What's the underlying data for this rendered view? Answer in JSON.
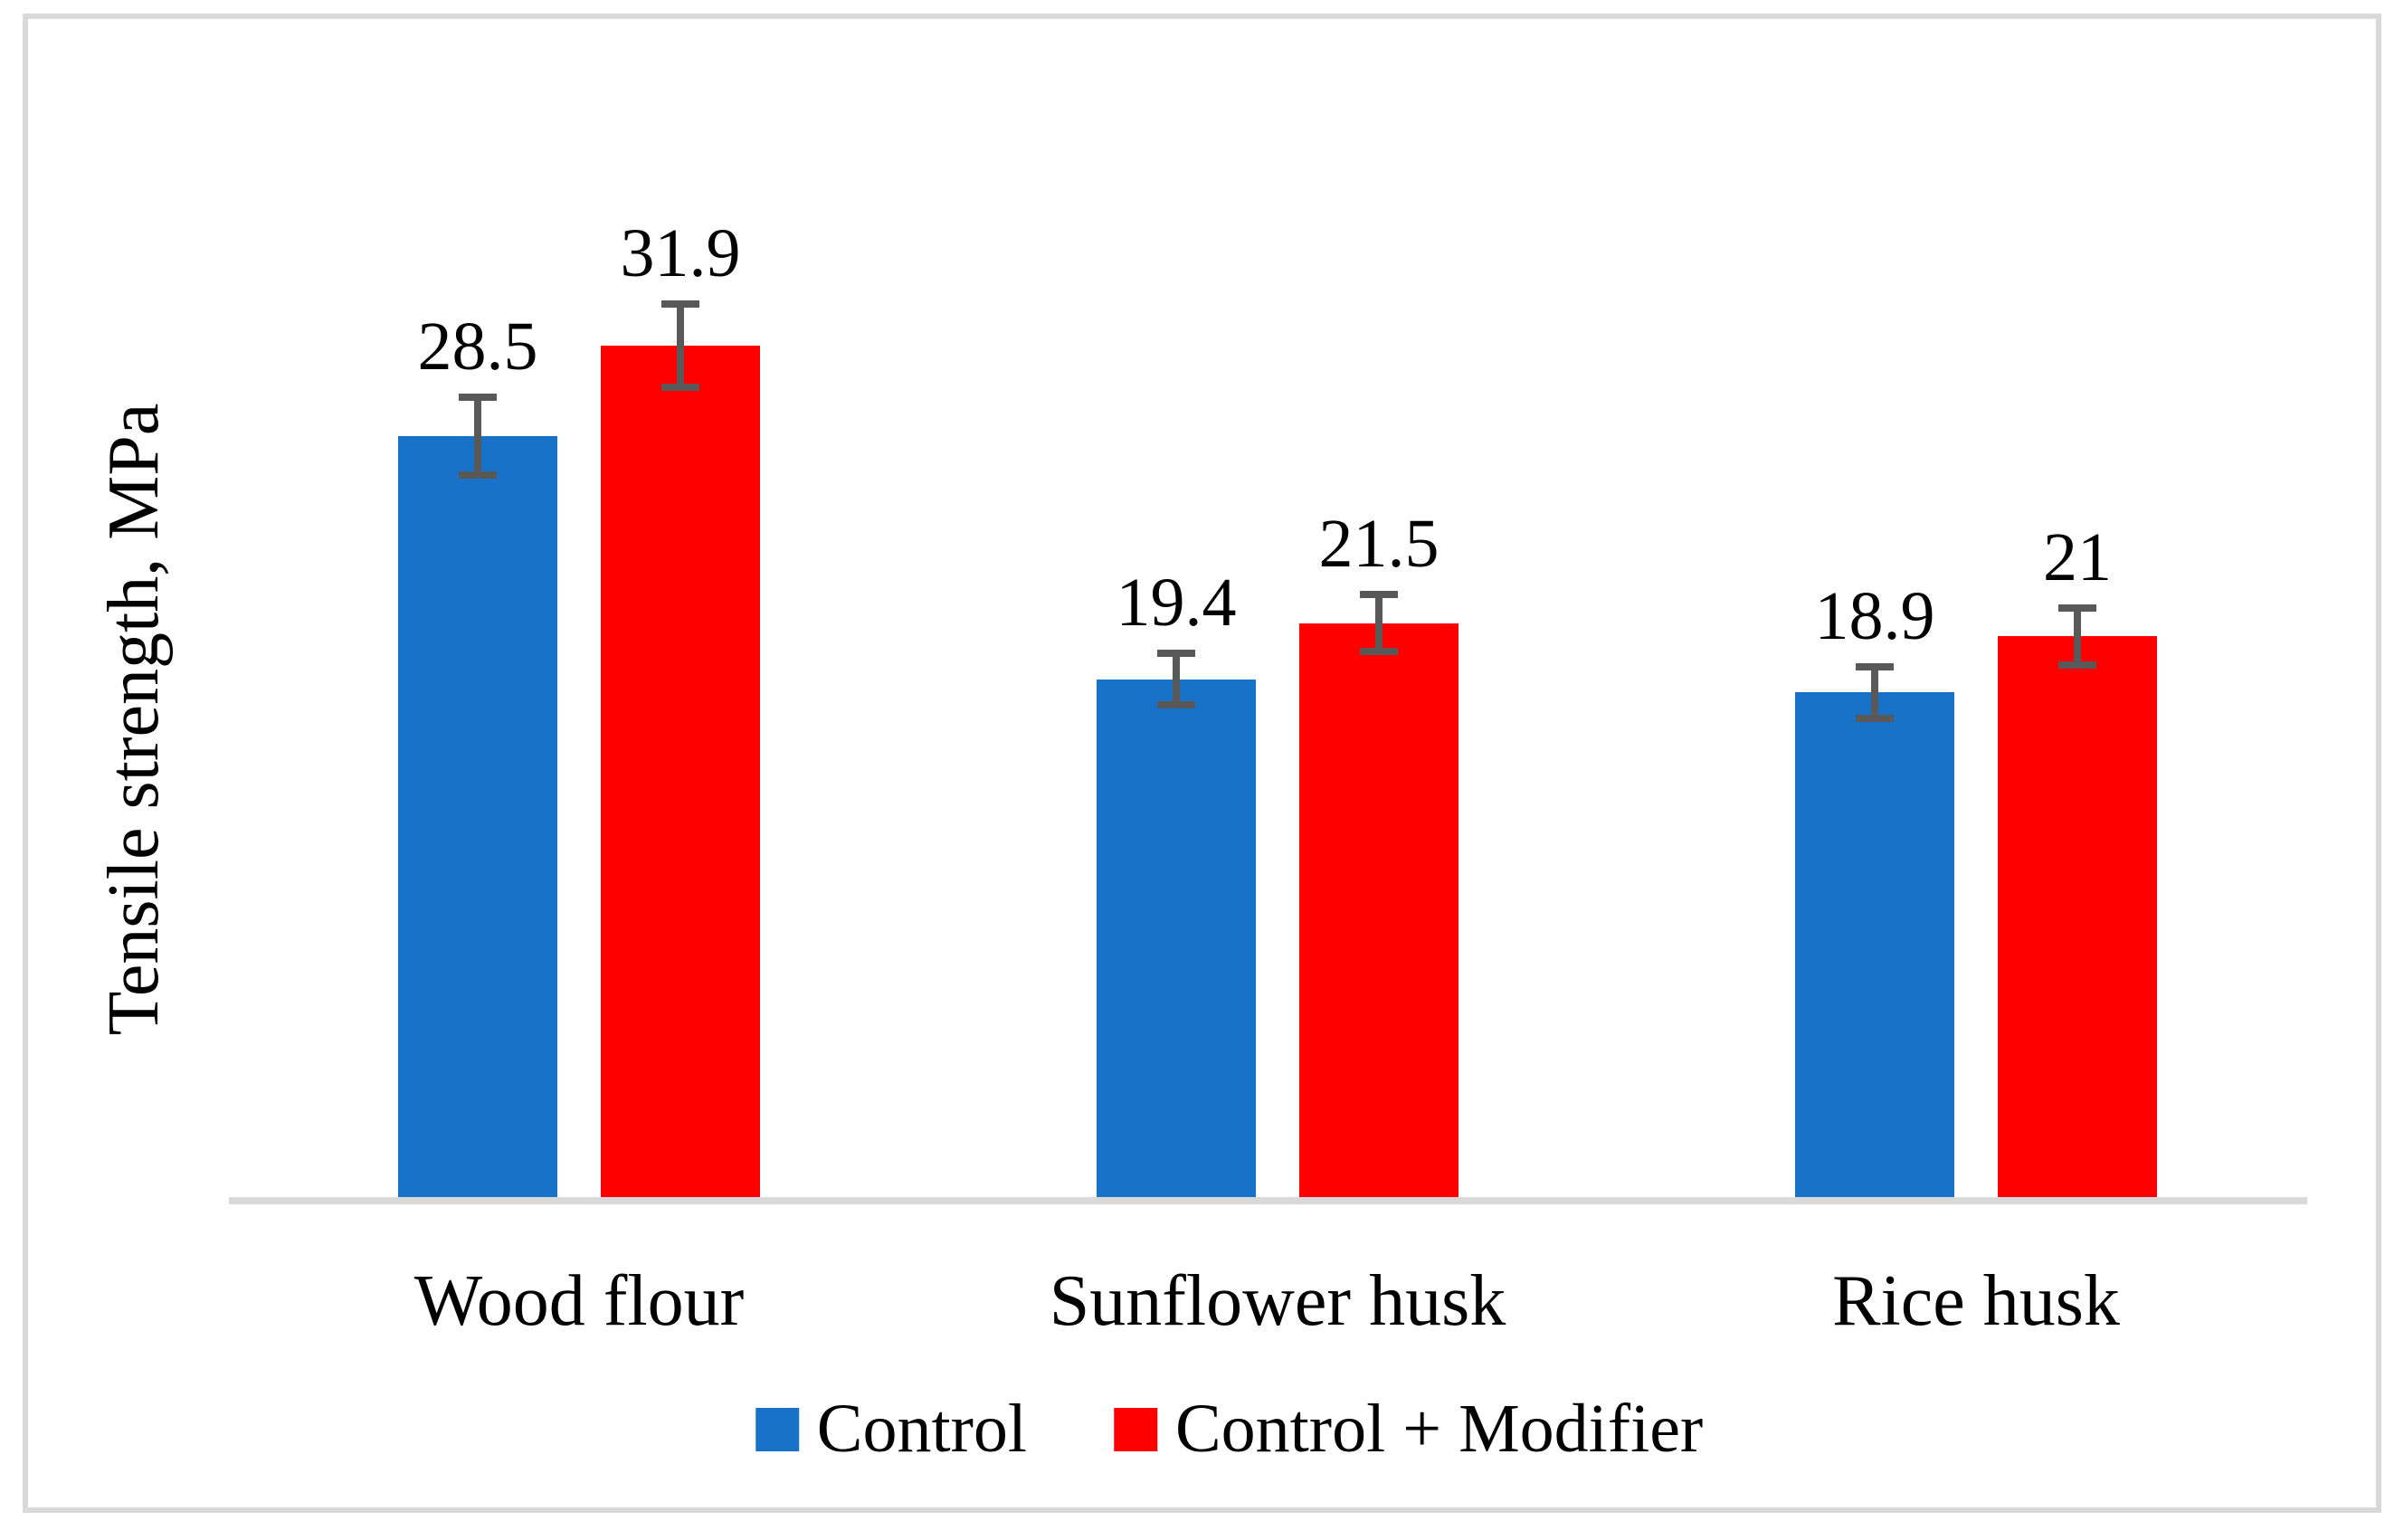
{
  "chart_data": {
    "type": "bar",
    "title": "",
    "xlabel": "",
    "ylabel": "Tensile strength, MPa",
    "categories": [
      "Wood flour",
      "Sunflower husk",
      "Rice husk"
    ],
    "series": [
      {
        "name": "Control",
        "color": "#1872c8",
        "values": [
          28.5,
          19.4,
          18.9
        ],
        "errors": [
          1.6,
          1.1,
          1.1
        ]
      },
      {
        "name": "Control + Modifier",
        "color": "#ff0000",
        "values": [
          31.9,
          21.5,
          21.0
        ],
        "errors": [
          1.7,
          1.2,
          1.2
        ]
      }
    ],
    "value_labels": [
      [
        "28.5",
        "19.4",
        "18.9"
      ],
      [
        "31.9",
        "21.5",
        "21"
      ]
    ],
    "ylim": [
      0,
      44
    ],
    "grid": false,
    "legend_position": "bottom",
    "axis_line_color": "#d9d9d9",
    "frame_color": "#d9d9d9",
    "error_bar_color": "#595959",
    "text_color": "#000000"
  }
}
